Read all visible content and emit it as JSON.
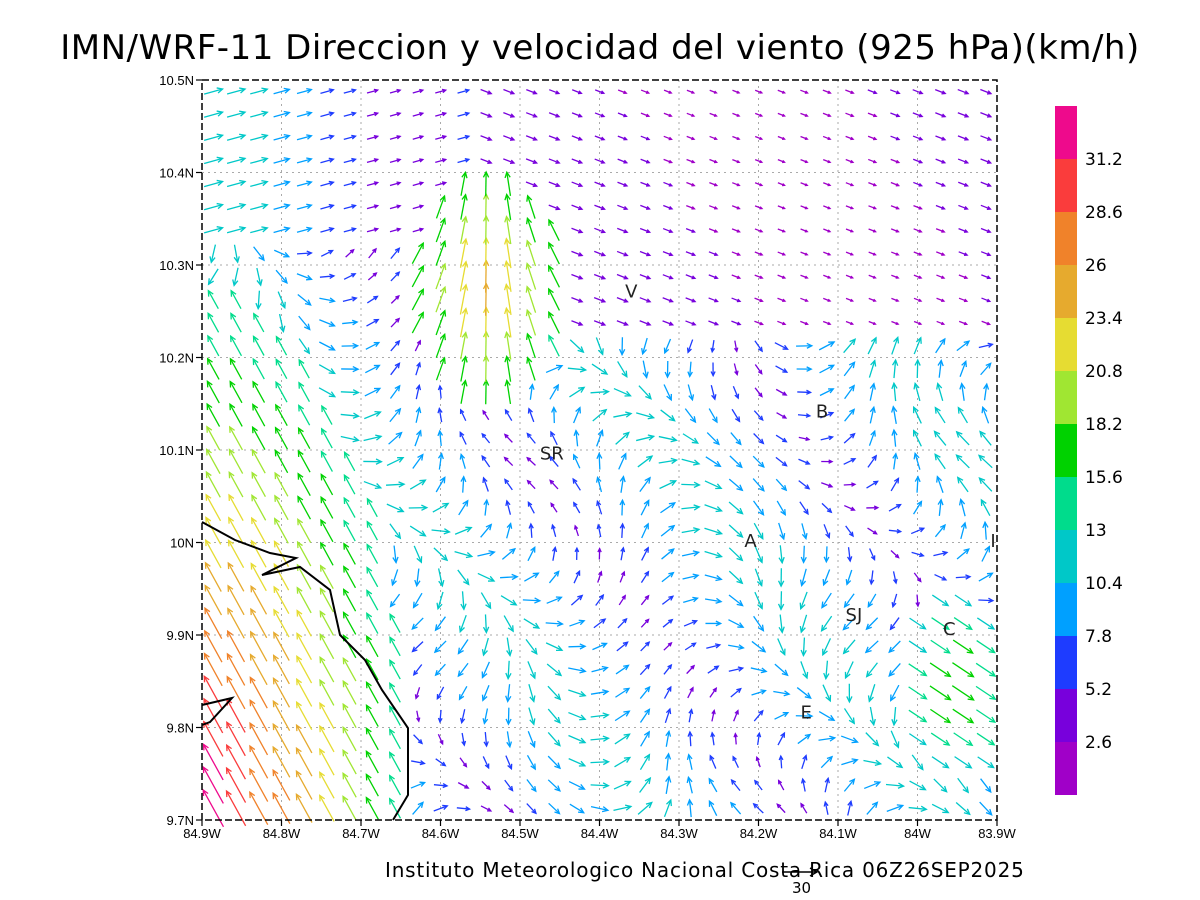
{
  "title": "IMN/WRF-11 Direccion y velocidad del viento (925 hPa)(km/h)",
  "footer": "Instituto Meteorologico Nacional Costa Rica 06Z26SEP2025",
  "reference_vector_label": "30",
  "axes": {
    "x_ticks": [
      "84.9W",
      "84.8W",
      "84.7W",
      "84.6W",
      "84.5W",
      "84.4W",
      "84.3W",
      "84.2W",
      "84.1W",
      "84W",
      "83.9W"
    ],
    "y_ticks": [
      "10.5N",
      "10.4N",
      "10.3N",
      "10.2N",
      "10.1N",
      "10N",
      "9.9N",
      "9.8N",
      "9.7N"
    ],
    "lon_range": [
      -84.9,
      -83.9
    ],
    "lat_range": [
      9.7,
      10.5
    ],
    "grid": true
  },
  "city_labels": [
    {
      "text": "V",
      "lon": -84.36,
      "lat": 10.265
    },
    {
      "text": "B",
      "lon": -84.12,
      "lat": 10.135
    },
    {
      "text": "SR",
      "lon": -84.46,
      "lat": 10.09
    },
    {
      "text": "A",
      "lon": -84.21,
      "lat": 9.995
    },
    {
      "text": "SJ",
      "lon": -84.08,
      "lat": 9.915
    },
    {
      "text": "C",
      "lon": -83.96,
      "lat": 9.9
    },
    {
      "text": "E",
      "lon": -84.14,
      "lat": 9.81
    },
    {
      "text": "I",
      "lon": -83.905,
      "lat": 9.995
    }
  ],
  "colorbar": {
    "labels": [
      "31.2",
      "28.6",
      "26",
      "23.4",
      "20.8",
      "18.2",
      "15.6",
      "13",
      "10.4",
      "7.8",
      "5.2",
      "2.6"
    ],
    "colors": [
      "#ee0a8c",
      "#fa3c3c",
      "#f0822a",
      "#e6aa2e",
      "#e6dc32",
      "#a0e632",
      "#00d200",
      "#00dc8c",
      "#00c8c8",
      "#00a0ff",
      "#1e3cff",
      "#7800dc",
      "#a000c8"
    ]
  }
}
